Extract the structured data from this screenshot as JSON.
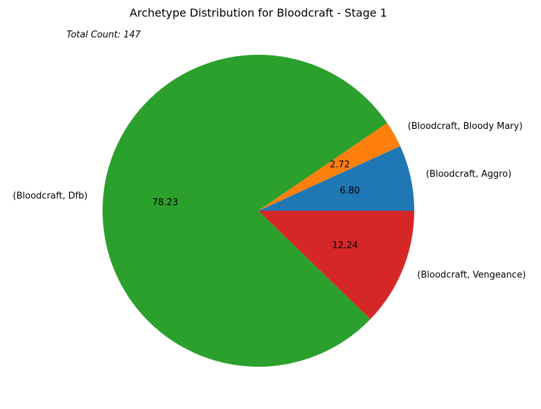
{
  "chart_data": {
    "type": "pie",
    "title": "Archetype Distribution for Bloodcraft - Stage 1",
    "annotation": "Total Count: 147",
    "start_angle_deg": 0,
    "direction": "counterclockwise",
    "slices": [
      {
        "label": "(Bloodcraft, Aggro)",
        "value": 6.8,
        "pct_text": "6.80",
        "color": "#1f77b4"
      },
      {
        "label": "(Bloodcraft, Bloody Mary)",
        "value": 2.72,
        "pct_text": "2.72",
        "color": "#ff7f0e"
      },
      {
        "label": "(Bloodcraft, Dfb)",
        "value": 78.23,
        "pct_text": "78.23",
        "color": "#2ca02c"
      },
      {
        "label": "(Bloodcraft, Vengeance)",
        "value": 12.24,
        "pct_text": "12.24",
        "color": "#d62728"
      }
    ]
  }
}
